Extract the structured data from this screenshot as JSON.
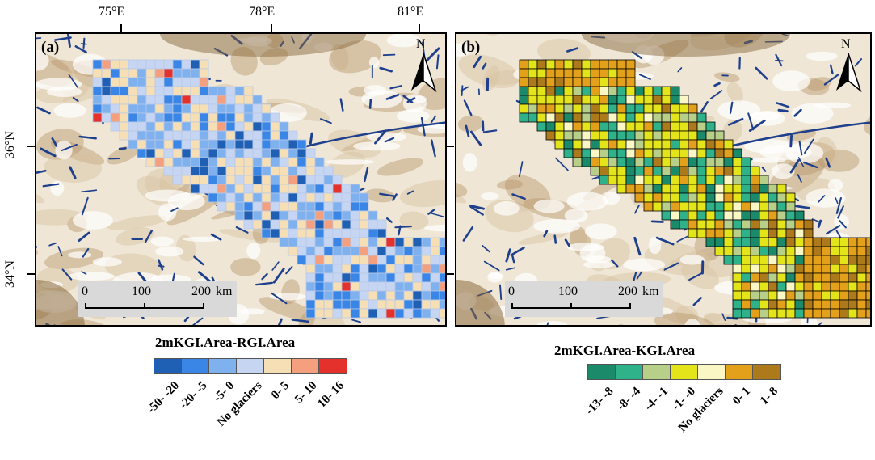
{
  "axes": {
    "lon_labels": [
      "75°E",
      "78°E",
      "81°E"
    ],
    "lat_labels": [
      "36°N",
      "34°N"
    ]
  },
  "panels": [
    {
      "id": "a",
      "label": "(a)",
      "north": "N",
      "scale_labels": [
        "0",
        "100",
        "200",
        "km"
      ],
      "legend_title": "2mKGI.Area-RGI.Area",
      "legend_classes": [
        "-50- -20",
        "-20- -5",
        "-5- 0",
        "No glaciers",
        "0- 5",
        "5- 10",
        "10- 16"
      ],
      "legend_colors": [
        "#1f5fb4",
        "#3a86e6",
        "#7fb1ee",
        "#c5d5f2",
        "#f7dfb5",
        "#f4a07e",
        "#e5312b"
      ]
    },
    {
      "id": "b",
      "label": "(b)",
      "north": "N",
      "scale_labels": [
        "0",
        "100",
        "200",
        "km"
      ],
      "legend_title": "2mKGI.Area-KGI.Area",
      "legend_classes": [
        "-13- -8",
        "-8- -4",
        "-4- -1",
        "-1- -0",
        "No glaciers",
        "0- 1",
        "1- 8"
      ],
      "legend_colors": [
        "#1a8a6a",
        "#2fb18a",
        "#b8cf8a",
        "#e4e41a",
        "#fbf7c4",
        "#e3a11b",
        "#ad7a1b"
      ]
    }
  ]
}
